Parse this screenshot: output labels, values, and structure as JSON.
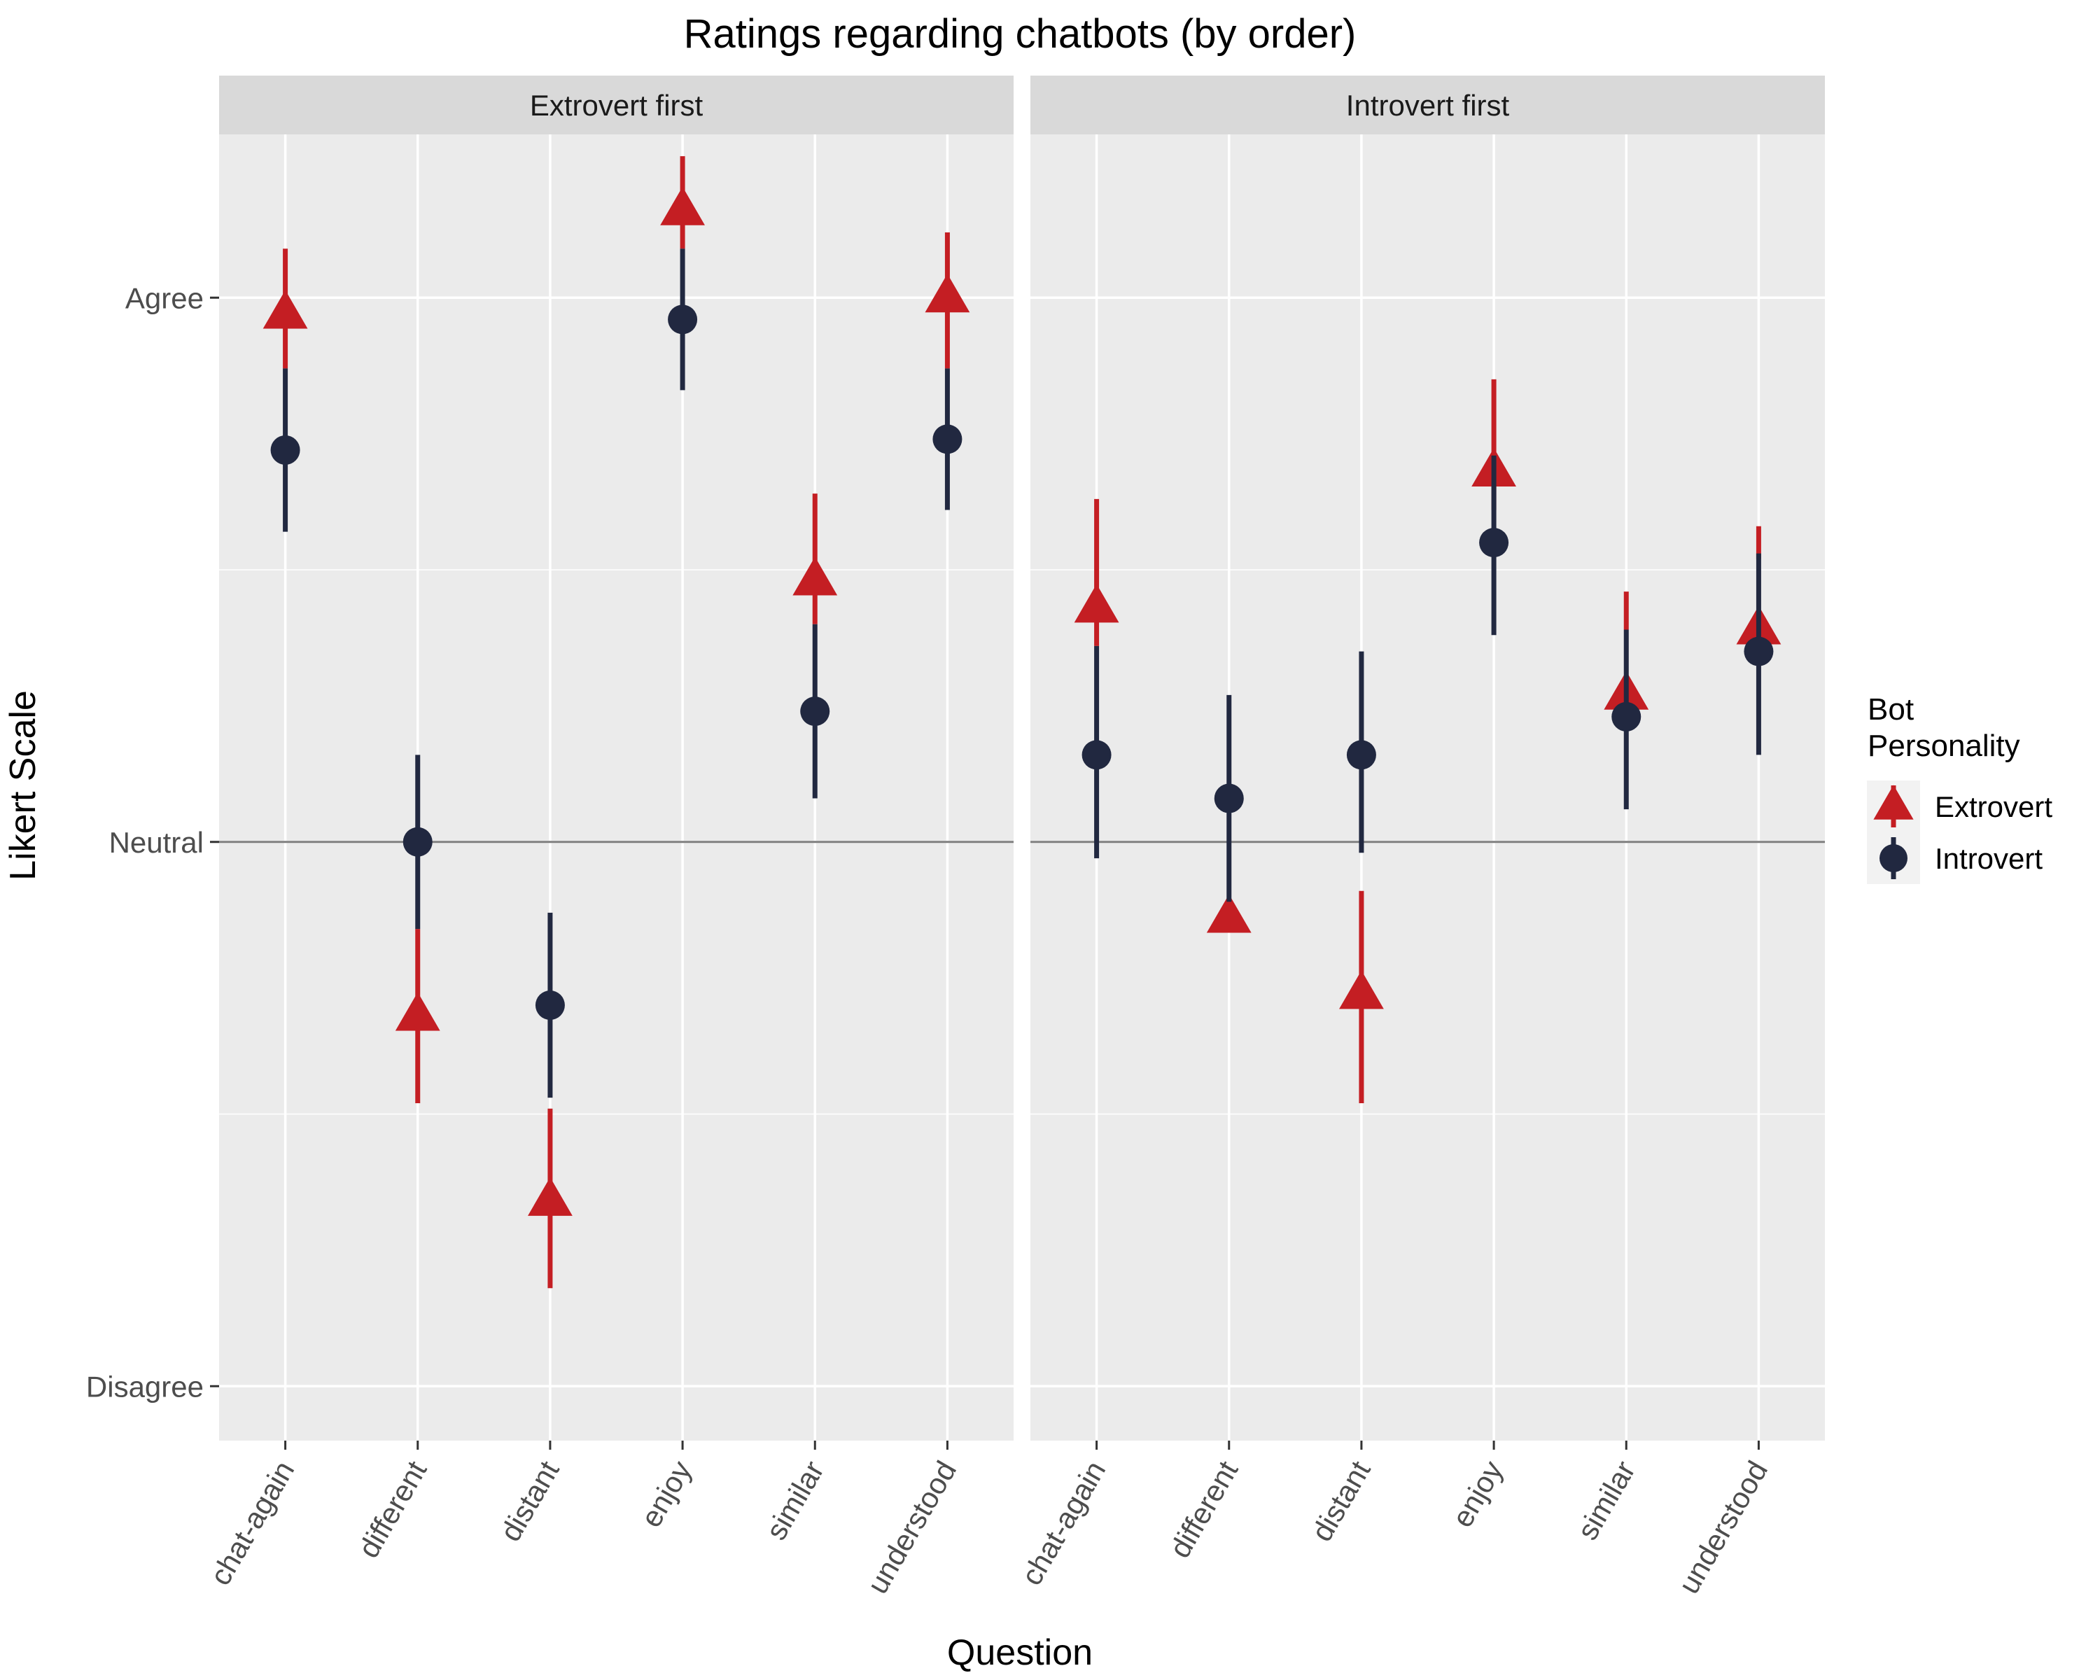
{
  "chart_data": {
    "type": "scatter",
    "title": "Ratings regarding chatbots (by order)",
    "xlabel": "Question",
    "ylabel": "Likert Scale",
    "categories": [
      "chat-again",
      "different",
      "distant",
      "enjoy",
      "similar",
      "understood"
    ],
    "ylim": [
      -1.1,
      1.3
    ],
    "y_ticks": [
      {
        "value": 1,
        "label": "Agree"
      },
      {
        "value": 0,
        "label": "Neutral"
      },
      {
        "value": -1,
        "label": "Disagree"
      }
    ],
    "reference_line": 0,
    "grid": true,
    "legend": {
      "title_lines": [
        "Bot",
        "Personality"
      ],
      "placement": "right"
    },
    "colors": {
      "Extrovert": "#c41e23",
      "Introvert": "#212840",
      "panel_bg": "#ebebeb",
      "strip_bg": "#d9d9d9",
      "grid": "#ffffff",
      "ref_line": "#7f7f7f"
    },
    "panels": [
      {
        "label": "Extrovert first",
        "series": [
          {
            "name": "Extrovert",
            "marker": "triangle",
            "values": [
              0.97,
              -0.32,
              -0.66,
              1.16,
              0.48,
              1.0
            ],
            "lower": [
              0.87,
              -0.48,
              -0.82,
              1.09,
              0.4,
              0.87
            ],
            "upper": [
              1.09,
              -0.16,
              -0.49,
              1.26,
              0.64,
              1.12
            ]
          },
          {
            "name": "Introvert",
            "marker": "circle",
            "values": [
              0.72,
              0.0,
              -0.3,
              0.96,
              0.24,
              0.74
            ],
            "lower": [
              0.57,
              -0.16,
              -0.47,
              0.83,
              0.08,
              0.61
            ],
            "upper": [
              0.87,
              0.16,
              -0.13,
              1.09,
              0.4,
              0.87
            ]
          }
        ]
      },
      {
        "label": "Introvert first",
        "series": [
          {
            "name": "Extrovert",
            "marker": "triangle",
            "values": [
              0.43,
              -0.14,
              -0.28,
              0.68,
              0.27,
              0.39
            ],
            "lower": [
              0.36,
              -0.34,
              -0.48,
              0.61,
              0.39,
              0.52
            ],
            "upper": [
              0.63,
              -0.34,
              -0.09,
              0.85,
              0.46,
              0.58
            ]
          },
          {
            "name": "Introvert",
            "marker": "circle",
            "values": [
              0.16,
              0.08,
              0.16,
              0.55,
              0.23,
              0.35
            ],
            "lower": [
              -0.03,
              -0.11,
              -0.02,
              0.38,
              0.06,
              0.16
            ],
            "upper": [
              0.36,
              0.27,
              0.35,
              0.71,
              0.39,
              0.53
            ]
          }
        ]
      }
    ]
  }
}
